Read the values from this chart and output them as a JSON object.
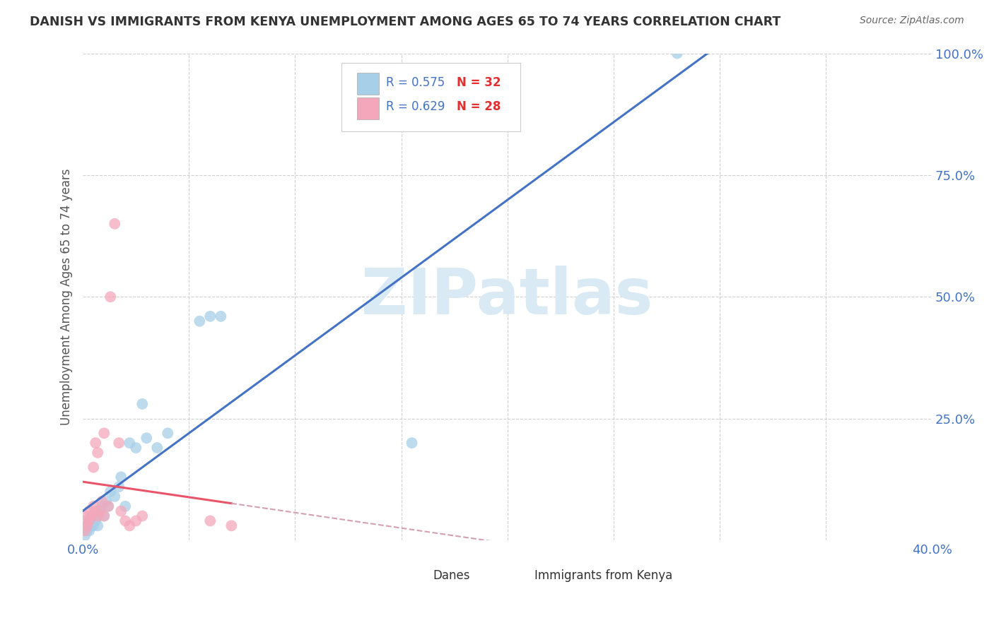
{
  "title": "DANISH VS IMMIGRANTS FROM KENYA UNEMPLOYMENT AMONG AGES 65 TO 74 YEARS CORRELATION CHART",
  "source": "Source: ZipAtlas.com",
  "ylabel": "Unemployment Among Ages 65 to 74 years",
  "xlim": [
    0.0,
    0.4
  ],
  "ylim": [
    0.0,
    1.0
  ],
  "x_ticks": [
    0.0,
    0.05,
    0.1,
    0.15,
    0.2,
    0.25,
    0.3,
    0.35,
    0.4
  ],
  "x_tick_labels": [
    "0.0%",
    "",
    "",
    "",
    "",
    "",
    "",
    "",
    "40.0%"
  ],
  "y_ticks": [
    0.0,
    0.25,
    0.5,
    0.75,
    1.0
  ],
  "y_tick_labels": [
    "",
    "25.0%",
    "50.0%",
    "75.0%",
    "100.0%"
  ],
  "legend_r1": "R = 0.575",
  "legend_n1": "N = 32",
  "legend_r2": "R = 0.629",
  "legend_n2": "N = 28",
  "blue_color": "#a8cfe8",
  "pink_color": "#f4a7bb",
  "blue_line_color": "#4472c4",
  "pink_line_color": "#e8546a",
  "pink_dash_color": "#d4a0b0",
  "watermark_color": "#daeaf5",
  "background_color": "#ffffff",
  "grid_color": "#d0d0d0",
  "tick_color": "#4472c4",
  "title_color": "#333333",
  "source_color": "#666666",
  "danes_x": [
    0.001,
    0.002,
    0.002,
    0.003,
    0.003,
    0.004,
    0.005,
    0.005,
    0.006,
    0.007,
    0.007,
    0.008,
    0.009,
    0.01,
    0.011,
    0.012,
    0.013,
    0.015,
    0.017,
    0.018,
    0.02,
    0.022,
    0.025,
    0.028,
    0.03,
    0.035,
    0.04,
    0.055,
    0.06,
    0.065,
    0.155,
    0.28
  ],
  "danes_y": [
    0.01,
    0.02,
    0.03,
    0.02,
    0.04,
    0.03,
    0.05,
    0.03,
    0.04,
    0.05,
    0.03,
    0.06,
    0.07,
    0.05,
    0.08,
    0.07,
    0.1,
    0.09,
    0.11,
    0.13,
    0.07,
    0.2,
    0.19,
    0.28,
    0.21,
    0.19,
    0.22,
    0.45,
    0.46,
    0.46,
    0.2,
    1.0
  ],
  "kenya_x": [
    0.001,
    0.001,
    0.002,
    0.002,
    0.003,
    0.003,
    0.004,
    0.005,
    0.005,
    0.006,
    0.006,
    0.007,
    0.007,
    0.008,
    0.009,
    0.01,
    0.01,
    0.012,
    0.013,
    0.015,
    0.017,
    0.018,
    0.02,
    0.022,
    0.025,
    0.028,
    0.06,
    0.07
  ],
  "kenya_y": [
    0.02,
    0.04,
    0.03,
    0.05,
    0.04,
    0.06,
    0.05,
    0.07,
    0.15,
    0.06,
    0.2,
    0.05,
    0.18,
    0.06,
    0.08,
    0.05,
    0.22,
    0.07,
    0.5,
    0.65,
    0.2,
    0.06,
    0.04,
    0.03,
    0.04,
    0.05,
    0.04,
    0.03
  ]
}
